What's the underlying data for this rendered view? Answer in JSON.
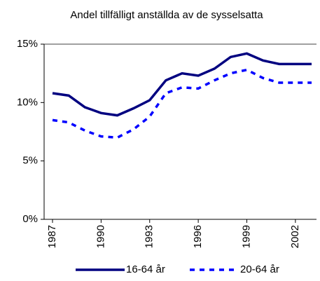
{
  "chart_data": {
    "type": "line",
    "title": "Andel tillfälligt anställda av de sysselsatta",
    "x": [
      1987,
      1988,
      1989,
      1990,
      1991,
      1992,
      1993,
      1994,
      1995,
      1996,
      1997,
      1998,
      1999,
      2000,
      2001,
      2002,
      2003
    ],
    "xlim": [
      1987,
      2003
    ],
    "xticks": [
      1987,
      1990,
      1993,
      1996,
      1999,
      2002
    ],
    "ylim": [
      0,
      15
    ],
    "yticks": [
      {
        "value": 0,
        "label": "0%"
      },
      {
        "value": 5,
        "label": "5%"
      },
      {
        "value": 10,
        "label": "10%"
      },
      {
        "value": 15,
        "label": "15%"
      }
    ],
    "grid": false,
    "legend": "bottom",
    "series": [
      {
        "name": "16-64 år",
        "color": "#000080",
        "dash": "solid",
        "values": [
          10.8,
          10.6,
          9.6,
          9.1,
          8.9,
          9.5,
          10.2,
          11.9,
          12.5,
          12.3,
          12.9,
          13.9,
          14.2,
          13.6,
          13.3,
          13.3,
          13.3
        ]
      },
      {
        "name": "20-64 år",
        "color": "#0000ff",
        "dash": "dashed",
        "values": [
          8.5,
          8.3,
          7.6,
          7.1,
          7.0,
          7.7,
          8.8,
          10.8,
          11.3,
          11.2,
          11.9,
          12.5,
          12.8,
          12.1,
          11.7,
          11.7,
          11.7
        ]
      }
    ]
  }
}
